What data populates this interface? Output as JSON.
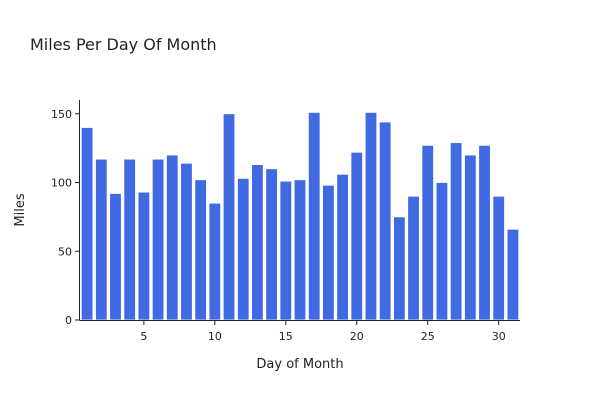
{
  "chart_data": {
    "type": "bar",
    "title": "Miles Per Day Of Month",
    "xlabel": "Day of Month",
    "ylabel": "Miles",
    "x": [
      1,
      2,
      3,
      4,
      5,
      6,
      7,
      8,
      9,
      10,
      11,
      12,
      13,
      14,
      15,
      16,
      17,
      18,
      19,
      20,
      21,
      22,
      23,
      24,
      25,
      26,
      27,
      28,
      29,
      30,
      31
    ],
    "values": [
      140,
      117,
      92,
      117,
      93,
      117,
      120,
      114,
      102,
      85,
      150,
      103,
      113,
      110,
      101,
      102,
      151,
      98,
      106,
      122,
      151,
      144,
      75,
      90,
      127,
      100,
      129,
      120,
      127,
      90,
      66
    ],
    "xlim": [
      0.5,
      31.5
    ],
    "ylim": [
      0,
      160
    ],
    "xticks": [
      5,
      10,
      15,
      20,
      25,
      30
    ],
    "yticks": [
      0,
      50,
      100,
      150
    ],
    "grid": false,
    "bar_color": "#4169e1"
  }
}
